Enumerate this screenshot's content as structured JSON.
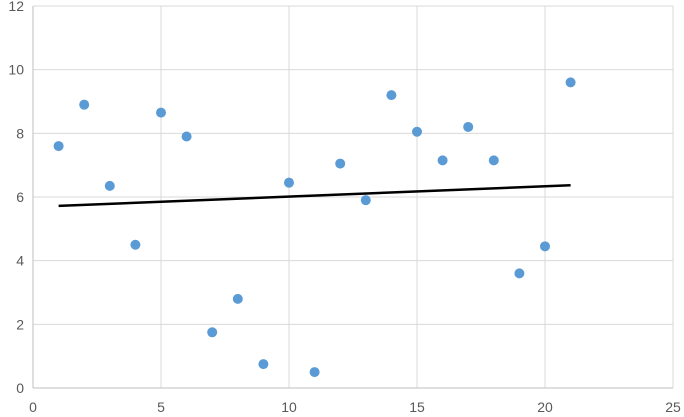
{
  "chart_data": {
    "type": "scatter",
    "title": "",
    "xlabel": "",
    "ylabel": "",
    "xlim": [
      0,
      25
    ],
    "ylim": [
      0,
      12
    ],
    "x_ticks": [
      0,
      5,
      10,
      15,
      20,
      25
    ],
    "y_ticks": [
      0,
      2,
      4,
      6,
      8,
      10,
      12
    ],
    "grid": true,
    "legend": "none",
    "marker_color": "#5b9bd5",
    "trendline_color": "#000000",
    "series": [
      {
        "points": [
          {
            "x": 1,
            "y": 7.6
          },
          {
            "x": 2,
            "y": 8.9
          },
          {
            "x": 3,
            "y": 6.35
          },
          {
            "x": 4,
            "y": 4.5
          },
          {
            "x": 5,
            "y": 8.65
          },
          {
            "x": 6,
            "y": 7.9
          },
          {
            "x": 7,
            "y": 1.75
          },
          {
            "x": 8,
            "y": 2.8
          },
          {
            "x": 9,
            "y": 0.75
          },
          {
            "x": 10,
            "y": 6.45
          },
          {
            "x": 11,
            "y": 0.5
          },
          {
            "x": 12,
            "y": 7.05
          },
          {
            "x": 13,
            "y": 5.9
          },
          {
            "x": 14,
            "y": 9.2
          },
          {
            "x": 15,
            "y": 8.05
          },
          {
            "x": 16,
            "y": 7.15
          },
          {
            "x": 17,
            "y": 8.2
          },
          {
            "x": 18,
            "y": 7.15
          },
          {
            "x": 19,
            "y": 3.6
          },
          {
            "x": 20,
            "y": 4.45
          },
          {
            "x": 21,
            "y": 9.6
          }
        ]
      }
    ],
    "trendline": {
      "type": "linear",
      "points": [
        {
          "x": 1,
          "y": 5.72
        },
        {
          "x": 21,
          "y": 6.37
        }
      ]
    }
  }
}
